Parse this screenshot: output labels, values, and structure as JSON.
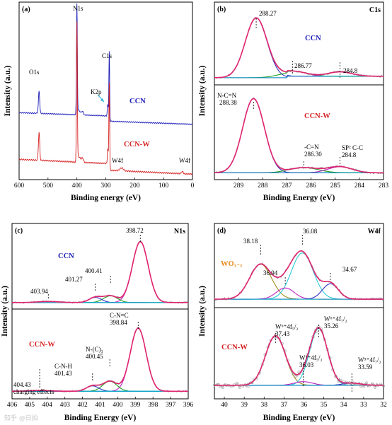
{
  "figure": {
    "watermark": "知乎 @日拍"
  },
  "chart_data": [
    {
      "panel": "(a)",
      "type": "line",
      "title": "",
      "xlabel": "Binding energy (eV)",
      "ylabel": "Intensity (a.u.)",
      "xlim": [
        600,
        0
      ],
      "x_reversed": true,
      "xticks": [
        "600",
        "500",
        "400",
        "300",
        "200",
        "100",
        "0"
      ],
      "peak_labels": [
        {
          "text": "O1s",
          "x": 531,
          "color": "#000000"
        },
        {
          "text": "N1s",
          "x": 400,
          "color": "#8e1fa0"
        },
        {
          "text": "C1s",
          "x": 288,
          "color": "#c9852a"
        },
        {
          "text": "K2p",
          "x": 293,
          "color": "#29b7d8"
        },
        {
          "text": "W4f",
          "x": 245,
          "color": "#6a2fc0"
        },
        {
          "text": "W4f",
          "x": 35,
          "color": "#6a2fc0"
        }
      ],
      "series": [
        {
          "name": "CCN",
          "color": "#1b1bb8"
        },
        {
          "name": "CCN-W",
          "color": "#d42020"
        }
      ]
    },
    {
      "panel": "(b)",
      "title": "C1s",
      "type": "line",
      "xlabel": "Binding Energy (eV)",
      "ylabel": "Intensity (a.u.)",
      "xlim": [
        290,
        283
      ],
      "x_reversed": true,
      "xticks": [
        "289",
        "288",
        "287",
        "286",
        "285",
        "284",
        "283"
      ],
      "subplots": [
        {
          "sample": "CCN",
          "sample_color": "#1b1bb8",
          "peaks": [
            {
              "label": "288.27",
              "x": 288.27
            },
            {
              "label": "286.77",
              "x": 286.77
            },
            {
              "label": "284.8",
              "x": 284.8
            }
          ]
        },
        {
          "sample": "CCN-W",
          "sample_color": "#d42020",
          "peaks": [
            {
              "label": "N-C=N",
              "label2": "288.38",
              "x": 288.38
            },
            {
              "label": "-C=N",
              "label2": "286.30",
              "x": 286.3
            },
            {
              "label": "SP² C-C",
              "label2": "284.8",
              "x": 284.8
            }
          ]
        }
      ]
    },
    {
      "panel": "(c)",
      "title": "N1s",
      "type": "line",
      "xlabel": "Binding Energy (eV)",
      "ylabel": "Intensity (a.u.)",
      "xlim": [
        406,
        396
      ],
      "x_reversed": true,
      "xticks": [
        "406",
        "405",
        "404",
        "403",
        "402",
        "401",
        "400",
        "399",
        "398",
        "397",
        "396"
      ],
      "subplots": [
        {
          "sample": "CCN",
          "sample_color": "#1b1bb8",
          "peaks": [
            {
              "label": "398.72",
              "x": 398.72
            },
            {
              "label": "400.41",
              "x": 400.41
            },
            {
              "label": "401.27",
              "x": 401.27
            },
            {
              "label": "403.94",
              "x": 403.94
            }
          ]
        },
        {
          "sample": "CCN-W",
          "sample_color": "#d42020",
          "peaks": [
            {
              "label": "C-N=C",
              "label2": "398.84",
              "x": 398.84
            },
            {
              "label": "N-(C)₃",
              "label2": "400.45",
              "x": 400.45
            },
            {
              "label": "C-N-H",
              "label2": "401.43",
              "x": 401.43
            },
            {
              "label": "404.43",
              "label2": "charging effects",
              "x": 404.43
            }
          ]
        }
      ]
    },
    {
      "panel": "(d)",
      "title": "W4f",
      "type": "line",
      "xlabel": "Binding Energy (eV)",
      "ylabel": "Intensity (a.u.)",
      "xlim": [
        40.5,
        32
      ],
      "x_reversed": true,
      "xticks": [
        "40",
        "39",
        "38",
        "37",
        "36",
        "35",
        "34",
        "33",
        "32"
      ],
      "subplots": [
        {
          "sample": "WO₃₋ₓ",
          "sample_color": "#e88a1c",
          "peaks": [
            {
              "label": "38.18",
              "x": 38.18
            },
            {
              "label": "36.08",
              "x": 36.08
            },
            {
              "label": "36.94",
              "x": 36.94
            },
            {
              "label": "34.67",
              "x": 34.67
            }
          ]
        },
        {
          "sample": "CCN-W",
          "sample_color": "#d42020",
          "peaks": [
            {
              "label": "W⁶⁺4f₅/₂",
              "label2": "37.43",
              "x": 37.43
            },
            {
              "label": "W⁶⁺4f₇/₂",
              "label2": "35.26",
              "x": 35.26
            },
            {
              "label": "W⁵⁺4f₅/₂",
              "label2": "36.03",
              "x": 36.03
            },
            {
              "label": "W⁵⁺4f₇/₂",
              "label2": "33.59",
              "x": 33.59
            }
          ]
        }
      ]
    }
  ]
}
